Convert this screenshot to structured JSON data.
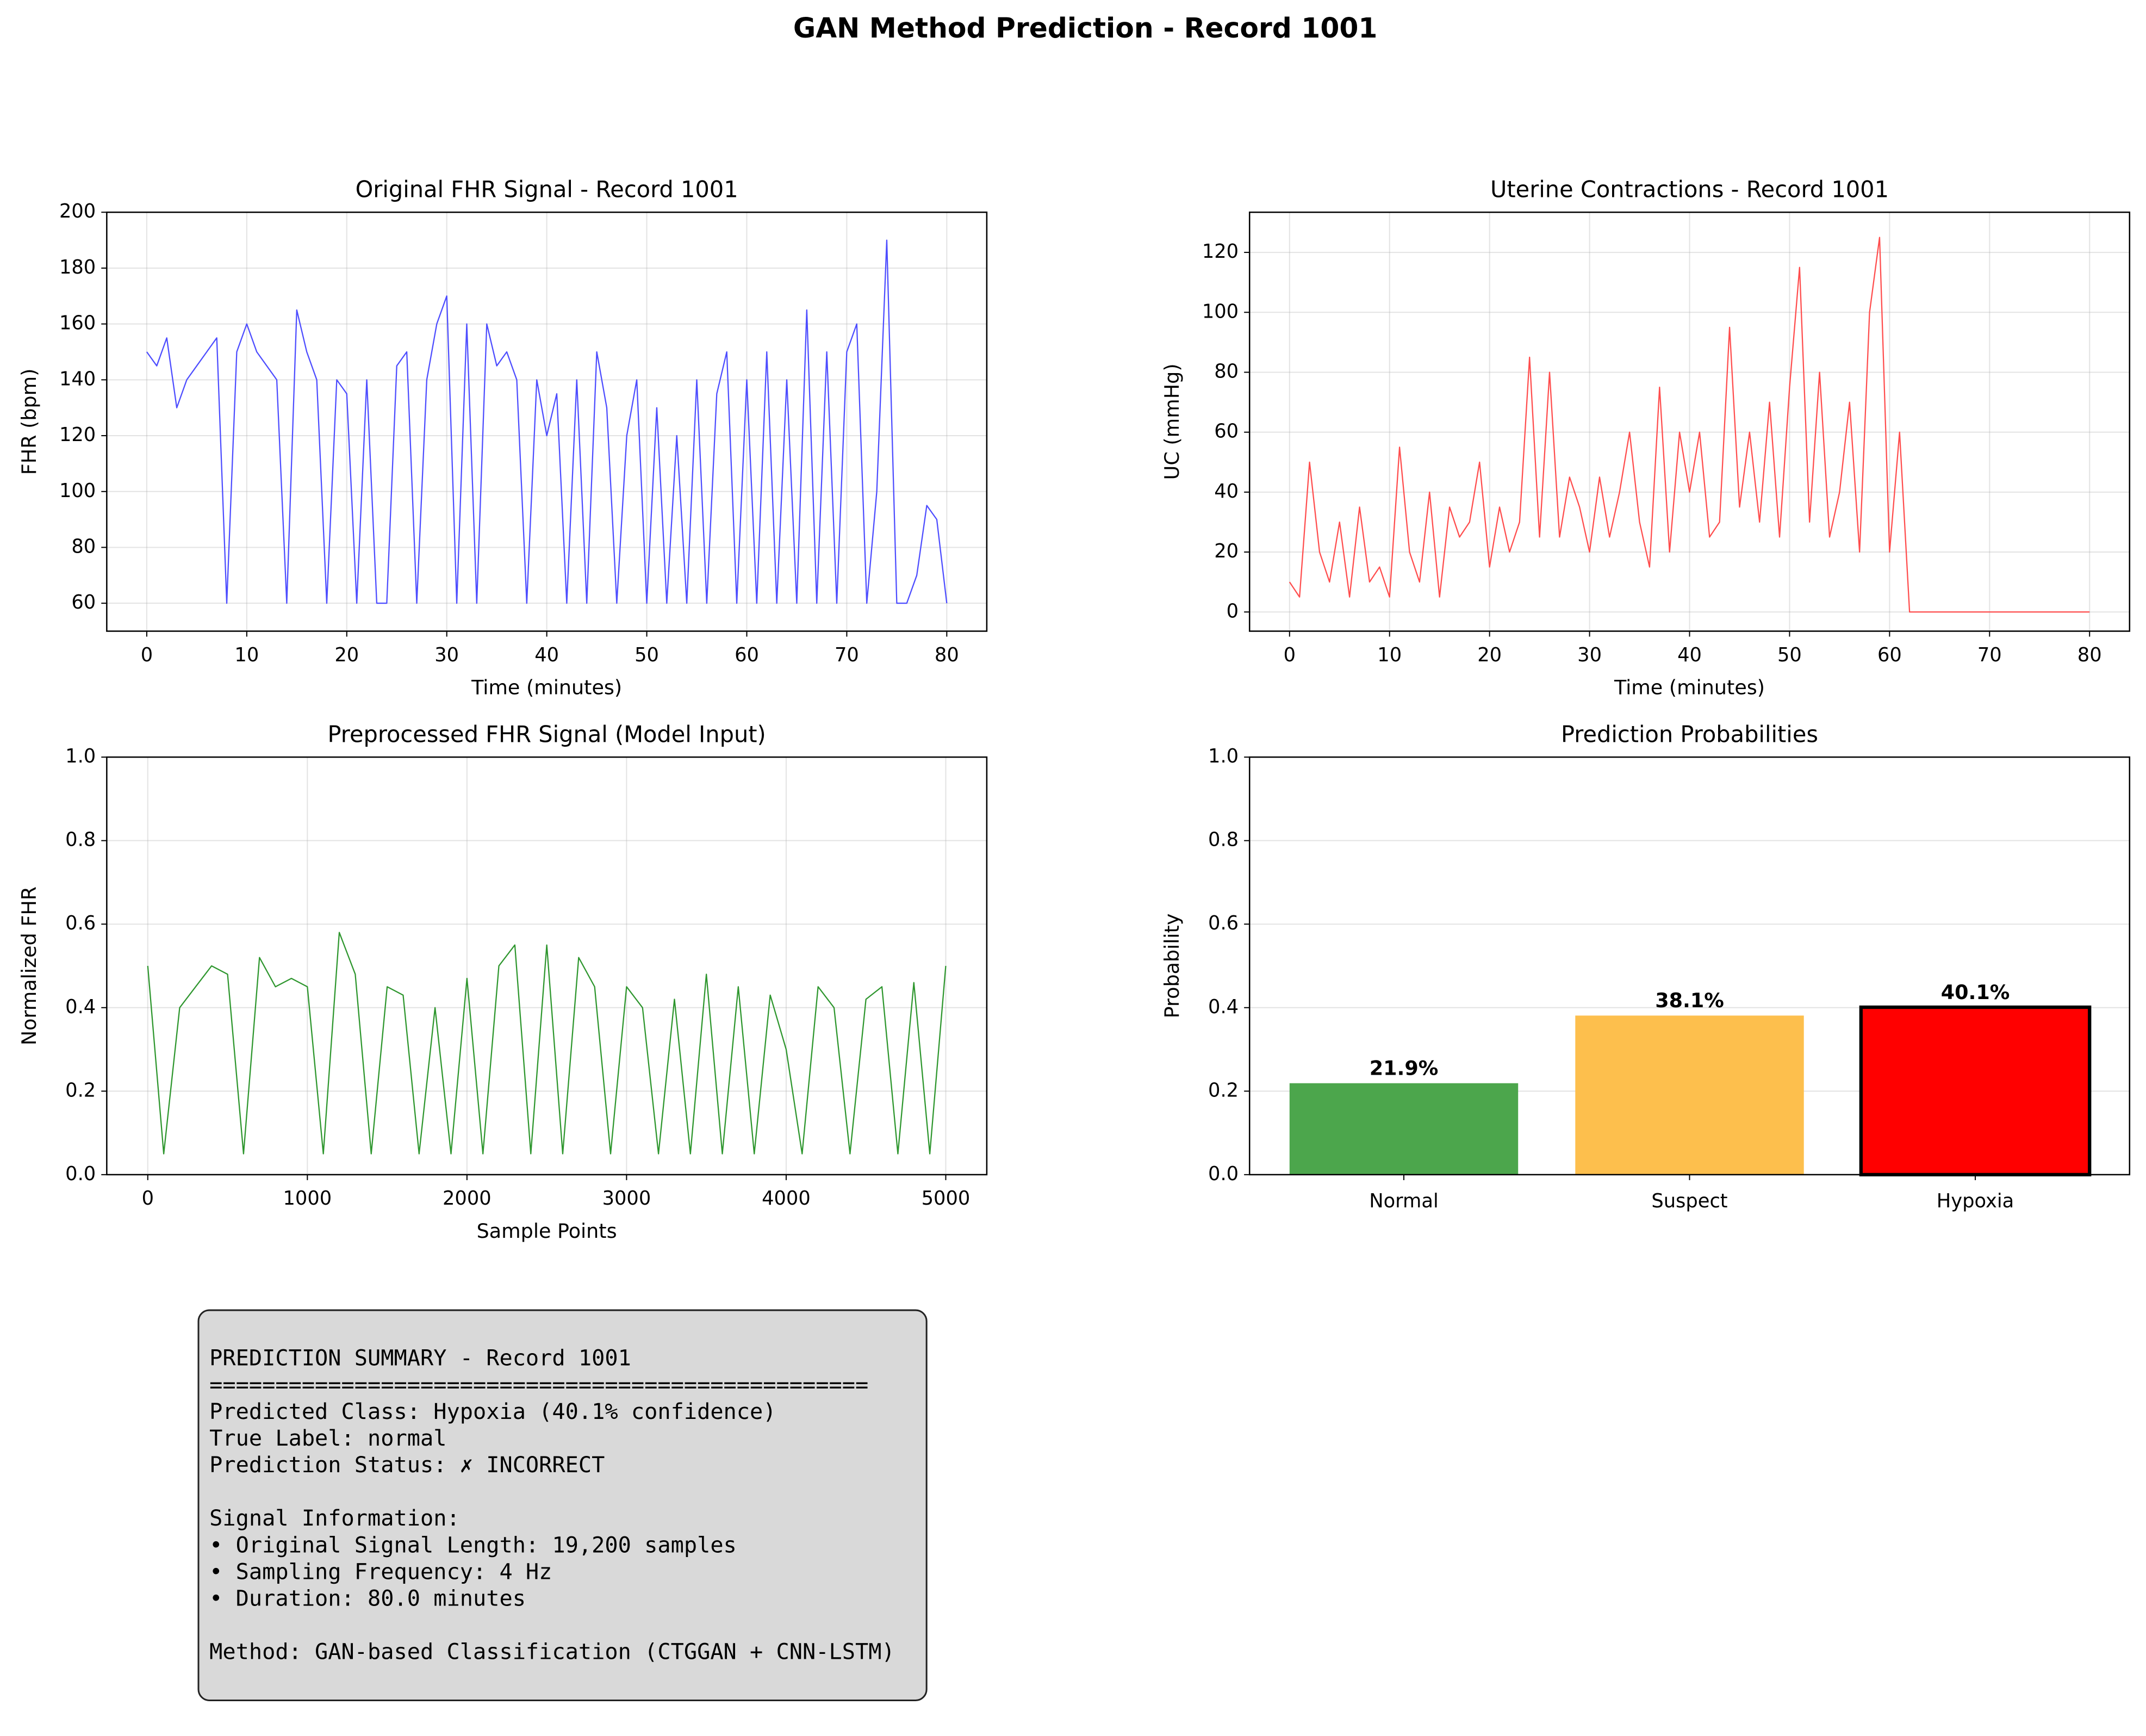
{
  "title": "GAN Method Prediction - Record 1001",
  "chart_data": [
    {
      "type": "line",
      "title": "Original FHR Signal - Record 1001",
      "xlabel": "Time (minutes)",
      "ylabel": "FHR (bpm)",
      "x": [
        0,
        1,
        2,
        3,
        4,
        5,
        6,
        7,
        8,
        9,
        10,
        11,
        12,
        13,
        14,
        15,
        16,
        17,
        18,
        19,
        20,
        21,
        22,
        23,
        24,
        25,
        26,
        27,
        28,
        29,
        30,
        31,
        32,
        33,
        34,
        35,
        36,
        37,
        38,
        39,
        40,
        41,
        42,
        43,
        44,
        45,
        46,
        47,
        48,
        49,
        50,
        51,
        52,
        53,
        54,
        55,
        56,
        57,
        58,
        59,
        60,
        61,
        62,
        63,
        64,
        65,
        66,
        67,
        68,
        69,
        70,
        71,
        72,
        73,
        74,
        75,
        76,
        77,
        78,
        79,
        80
      ],
      "values": [
        150,
        145,
        155,
        130,
        140,
        145,
        150,
        155,
        60,
        150,
        160,
        150,
        145,
        140,
        60,
        165,
        150,
        140,
        60,
        140,
        135,
        60,
        140,
        60,
        60,
        145,
        150,
        60,
        140,
        160,
        170,
        60,
        160,
        60,
        160,
        145,
        150,
        140,
        60,
        140,
        120,
        135,
        60,
        140,
        60,
        150,
        130,
        60,
        120,
        140,
        60,
        130,
        60,
        120,
        60,
        140,
        60,
        135,
        150,
        60,
        140,
        60,
        150,
        60,
        140,
        60,
        165,
        60,
        150,
        60,
        150,
        160,
        60,
        100,
        190,
        60,
        60,
        70,
        95,
        90,
        60
      ],
      "color": "#4d4dff",
      "xlim": [
        -4,
        84
      ],
      "ylim": [
        50,
        200
      ],
      "xticks": [
        0,
        10,
        20,
        30,
        40,
        50,
        60,
        70,
        80
      ],
      "yticks": [
        60,
        80,
        100,
        120,
        140,
        160,
        180,
        200
      ],
      "grid": true
    },
    {
      "type": "line",
      "title": "Uterine Contractions - Record 1001",
      "xlabel": "Time (minutes)",
      "ylabel": "UC (mmHg)",
      "x": [
        0,
        1,
        2,
        3,
        4,
        5,
        6,
        7,
        8,
        9,
        10,
        11,
        12,
        13,
        14,
        15,
        16,
        17,
        18,
        19,
        20,
        21,
        22,
        23,
        24,
        25,
        26,
        27,
        28,
        29,
        30,
        31,
        32,
        33,
        34,
        35,
        36,
        37,
        38,
        39,
        40,
        41,
        42,
        43,
        44,
        45,
        46,
        47,
        48,
        49,
        50,
        51,
        52,
        53,
        54,
        55,
        56,
        57,
        58,
        59,
        60,
        61,
        62,
        63,
        80
      ],
      "values": [
        10,
        5,
        50,
        20,
        10,
        30,
        5,
        35,
        10,
        15,
        5,
        55,
        20,
        10,
        40,
        5,
        35,
        25,
        30,
        50,
        15,
        35,
        20,
        30,
        85,
        25,
        80,
        25,
        45,
        35,
        20,
        45,
        25,
        40,
        60,
        30,
        15,
        75,
        20,
        60,
        40,
        60,
        25,
        30,
        95,
        35,
        60,
        30,
        70,
        25,
        75,
        115,
        30,
        80,
        25,
        40,
        70,
        20,
        100,
        125,
        20,
        60,
        0,
        0,
        0
      ],
      "color": "#ff4d4d",
      "xlim": [
        -4,
        84
      ],
      "ylim": [
        -6.4,
        133.4
      ],
      "xticks": [
        0,
        10,
        20,
        30,
        40,
        50,
        60,
        70,
        80
      ],
      "yticks": [
        0,
        20,
        40,
        60,
        80,
        100,
        120
      ],
      "grid": true
    },
    {
      "type": "line",
      "title": "Preprocessed FHR Signal (Model Input)",
      "xlabel": "Sample Points",
      "ylabel": "Normalized FHR",
      "x": [
        0,
        100,
        200,
        300,
        400,
        500,
        600,
        700,
        800,
        900,
        1000,
        1100,
        1200,
        1300,
        1400,
        1500,
        1600,
        1700,
        1800,
        1900,
        2000,
        2100,
        2200,
        2300,
        2400,
        2500,
        2600,
        2700,
        2800,
        2900,
        3000,
        3100,
        3200,
        3300,
        3400,
        3500,
        3600,
        3700,
        3800,
        3900,
        4000,
        4100,
        4200,
        4300,
        4400,
        4500,
        4600,
        4700,
        4800,
        4900,
        5000
      ],
      "values": [
        0.5,
        0.05,
        0.4,
        0.45,
        0.5,
        0.48,
        0.05,
        0.52,
        0.45,
        0.47,
        0.45,
        0.05,
        0.58,
        0.48,
        0.05,
        0.45,
        0.43,
        0.05,
        0.4,
        0.05,
        0.47,
        0.05,
        0.5,
        0.55,
        0.05,
        0.55,
        0.05,
        0.52,
        0.45,
        0.05,
        0.45,
        0.4,
        0.05,
        0.42,
        0.05,
        0.48,
        0.05,
        0.45,
        0.05,
        0.43,
        0.3,
        0.05,
        0.45,
        0.4,
        0.05,
        0.42,
        0.45,
        0.05,
        0.46,
        0.05,
        0.5
      ],
      "color": "#2e962e",
      "xlim": [
        -257,
        5257
      ],
      "ylim": [
        0,
        1
      ],
      "xticks": [
        0,
        1000,
        2000,
        3000,
        4000,
        5000
      ],
      "yticks": [
        {
          "value": 0,
          "label": "0.0"
        },
        0.2,
        0.4,
        0.6,
        0.8,
        {
          "value": 1,
          "label": "1.0"
        }
      ],
      "grid": true
    },
    {
      "type": "bar",
      "title": "Prediction Probabilities",
      "ylabel": "Probability",
      "categories": [
        "Normal",
        "Suspect",
        "Hypoxia"
      ],
      "values": [
        0.219,
        0.381,
        0.401
      ],
      "value_labels": [
        "21.9%",
        "38.1%",
        "40.1%"
      ],
      "colors": [
        "#4ca64c",
        "#fdbf4d",
        "#ff0000"
      ],
      "edgecolors": [
        "none",
        "none",
        "#000000"
      ],
      "ylim": [
        0,
        1
      ],
      "yticks": [
        {
          "value": 0,
          "label": "0.0"
        },
        0.2,
        0.4,
        0.6,
        0.8,
        {
          "value": 1,
          "label": "1.0"
        }
      ],
      "grid": true
    }
  ],
  "summary": {
    "blocks": [
      [
        "PREDICTION SUMMARY - Record 1001",
        "==================================================",
        "Predicted Class: Hypoxia (40.1% confidence)",
        "True Label: normal",
        "Prediction Status: ✗ INCORRECT"
      ],
      [
        "Signal Information:",
        "• Original Signal Length: 19,200 samples",
        "• Sampling Frequency: 4 Hz",
        "• Duration: 80.0 minutes"
      ],
      [
        "Method: GAN-based Classification (CTGGAN + CNN-LSTM)"
      ]
    ]
  }
}
